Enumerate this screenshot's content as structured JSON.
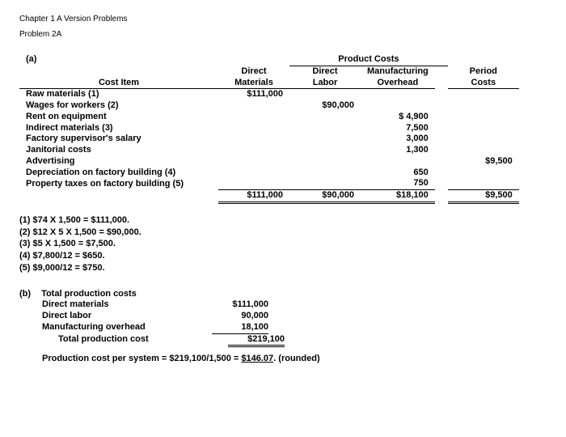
{
  "header": {
    "chapter": "Chapter 1 A Version Problems",
    "problem": "Problem 2A"
  },
  "partA": {
    "label": "(a)",
    "group_header": "Product Costs",
    "columns": {
      "item": "Cost Item",
      "dm1": "Direct",
      "dm2": "Materials",
      "dl1": "Direct",
      "dl2": "Labor",
      "oh1": "Manufacturing",
      "oh2": "Overhead",
      "pc1": "Period",
      "pc2": "Costs"
    },
    "rows": [
      {
        "item": "Raw materials (1)",
        "dm": "$111,000",
        "dl": "",
        "oh": "",
        "pc": ""
      },
      {
        "item": "Wages for workers (2)",
        "dm": "",
        "dl": "$90,000",
        "oh": "",
        "pc": ""
      },
      {
        "item": "Rent on equipment",
        "dm": "",
        "dl": "",
        "oh": "$ 4,900",
        "pc": ""
      },
      {
        "item": "Indirect materials (3)",
        "dm": "",
        "dl": "",
        "oh": "7,500",
        "pc": ""
      },
      {
        "item": "Factory supervisor's salary",
        "dm": "",
        "dl": "",
        "oh": "3,000",
        "pc": ""
      },
      {
        "item": "Janitorial costs",
        "dm": "",
        "dl": "",
        "oh": "1,300",
        "pc": ""
      },
      {
        "item": "Advertising",
        "dm": "",
        "dl": "",
        "oh": "",
        "pc": "$9,500"
      },
      {
        "item": "Depreciation on factory building (4)",
        "dm": "",
        "dl": "",
        "oh": "650",
        "pc": ""
      },
      {
        "item": "Property taxes on factory building (5)",
        "dm": "",
        "dl": "",
        "oh": "750",
        "pc": ""
      }
    ],
    "totals": {
      "dm": "$111,000",
      "dl": "$90,000",
      "oh": "$18,100",
      "pc": "$9,500"
    }
  },
  "footnotes": [
    "(1)   $74 X 1,500 = $111,000.",
    "(2)   $12 X 5 X 1,500 = $90,000.",
    "(3)   $5 X 1,500 = $7,500.",
    "(4)   $7,800/12 = $650.",
    "(5)   $9,000/12 = $750."
  ],
  "partB": {
    "label": "(b)",
    "title": "Total production costs",
    "lines": [
      {
        "label": "Direct materials",
        "value": "$111,000",
        "indent": 1
      },
      {
        "label": "Direct labor",
        "value": "90,000",
        "indent": 1
      },
      {
        "label": "Manufacturing overhead",
        "value": "18,100",
        "indent": 1,
        "underline_val": true
      },
      {
        "label": "Total production cost",
        "value": "$219,100",
        "indent": 2,
        "dbl": true
      }
    ],
    "per_unit_prefix": "Production cost per system = $219,100/1,500 = ",
    "per_unit_value": "$146.07",
    "per_unit_suffix": ". (rounded)"
  }
}
